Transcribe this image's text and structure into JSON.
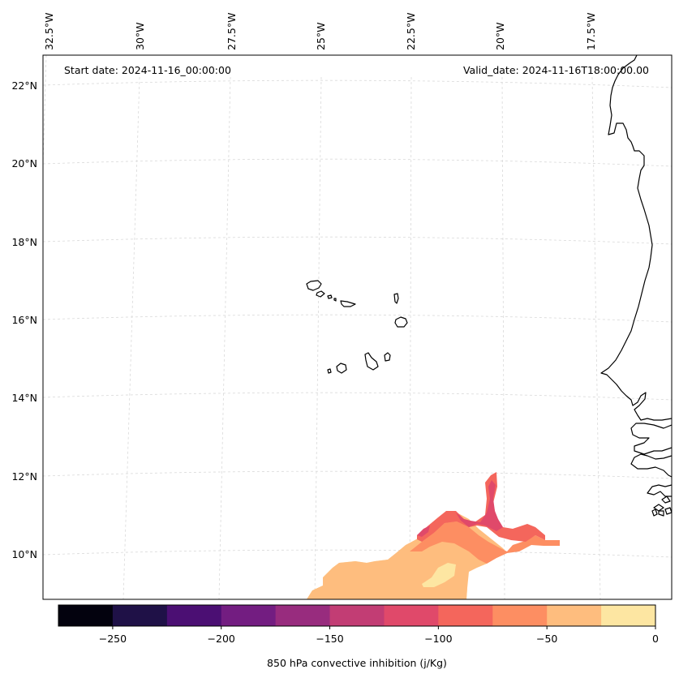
{
  "header": {
    "start_date": "Start date: 2024-11-16_00:00:00",
    "valid_date": "Valid_date: 2024-11-16T18:00:00.00"
  },
  "longitude_labels": [
    "32.5°W",
    "30°W",
    "27.5°W",
    "25°W",
    "22.5°W",
    "20°W",
    "17.5°W"
  ],
  "latitude_labels": [
    "22°N",
    "20°N",
    "18°N",
    "16°N",
    "14°N",
    "12°N",
    "10°N"
  ],
  "colorbar": {
    "label": "850 hPa convective inhibition (j/Kg)",
    "tick_labels": [
      "−250",
      "−200",
      "−150",
      "−100",
      "−50",
      "0"
    ],
    "min": -275,
    "max": 0,
    "step": 25,
    "colors": [
      "#03020e",
      "#1f1147",
      "#4b0f73",
      "#731d81",
      "#982c7e",
      "#c23d74",
      "#e0496a",
      "#f4665c",
      "#fd8e62",
      "#febd7e",
      "#fde6a2"
    ]
  },
  "field_colors": {
    "light": "#fde6a2",
    "peach": "#febd7e",
    "orange": "#fd8e62",
    "coral": "#f4665c",
    "magenta": "#e0496a"
  }
}
